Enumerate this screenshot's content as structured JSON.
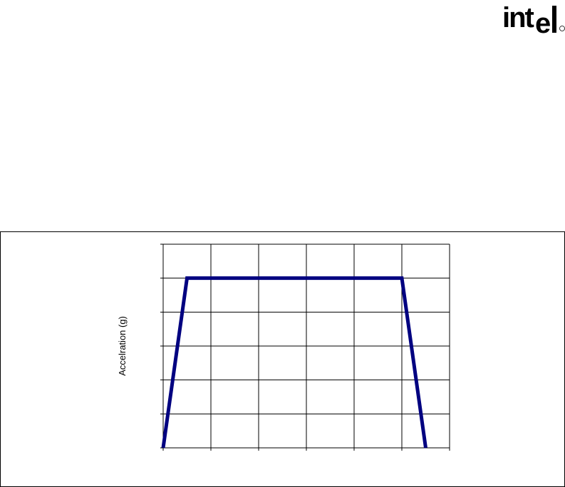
{
  "logo": {
    "text": "intel",
    "mark": "®"
  },
  "chart_data": {
    "type": "line",
    "title": "",
    "xlabel": "",
    "ylabel": "Accelration (g)",
    "xlim": [
      0,
      6
    ],
    "ylim": [
      0,
      6
    ],
    "x_gridlines": 6,
    "y_gridlines": 6,
    "grid": true,
    "tick_labels_shown": false,
    "series": [
      {
        "x": [
          0,
          0.5,
          5,
          5.5
        ],
        "y": [
          0,
          5,
          5,
          0
        ],
        "color": "#000080"
      }
    ]
  }
}
